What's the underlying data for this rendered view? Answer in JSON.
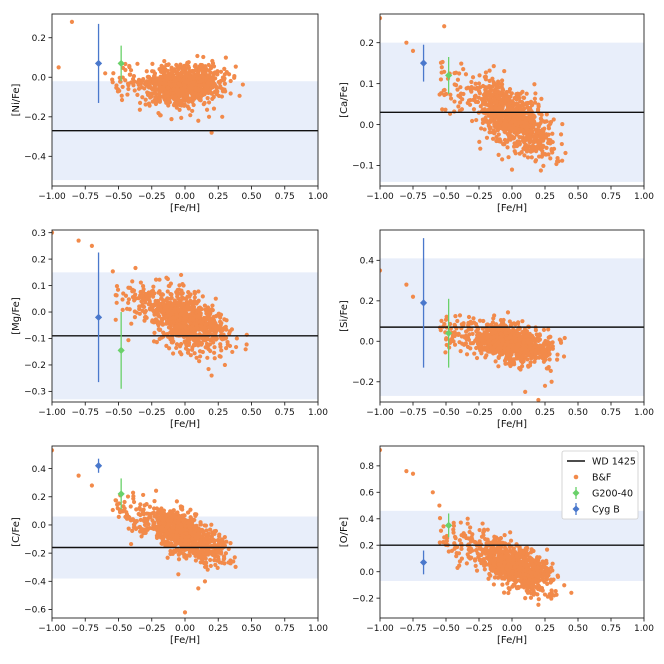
{
  "colors": {
    "band": "#e8eefa",
    "wd_line": "#111111",
    "bf": "#f28a4a",
    "g200": "#6ad16a",
    "cygb": "#4a78cc"
  },
  "legend": {
    "location": "upper right of bottom-right panel",
    "entries": [
      {
        "label": "WD 1425",
        "marker": "line"
      },
      {
        "label": "B&F",
        "marker": "dot"
      },
      {
        "label": "G200-40",
        "marker": "errorbar"
      },
      {
        "label": "Cyg B",
        "marker": "errorbar"
      }
    ]
  },
  "chart_data": [
    {
      "type": "scatter",
      "panel": "ni",
      "xlabel": "[Fe/H]",
      "ylabel": "[Ni/Fe]",
      "xlim": [
        -1.0,
        1.0
      ],
      "ylim": [
        -0.55,
        0.32
      ],
      "xticks": [
        -1.0,
        -0.75,
        -0.5,
        -0.25,
        0.0,
        0.25,
        0.5,
        0.75,
        1.0
      ],
      "xticklabels": [
        "−1.00",
        "−0.75",
        "−0.50",
        "−0.25",
        "0.00",
        "0.25",
        "0.50",
        "0.75",
        "1.00"
      ],
      "yticks": [
        -0.4,
        -0.2,
        0.0,
        0.2
      ],
      "yticklabels": [
        "−0.4",
        "−0.2",
        "0.0",
        "0.2"
      ],
      "band": [
        -0.52,
        -0.02
      ],
      "wd_value": -0.27,
      "g200": {
        "x": -0.48,
        "y": 0.07,
        "yerr": 0.09
      },
      "cygb": {
        "x": -0.65,
        "y": 0.07,
        "yerr": 0.2
      },
      "bf_trend": {
        "slope": 0.05,
        "intercept": -0.04,
        "curv": 0.18,
        "spread": 0.05
      },
      "bf_outliers": [
        [
          -0.85,
          0.28
        ],
        [
          -0.95,
          0.05
        ],
        [
          -0.6,
          0.02
        ],
        [
          0.2,
          -0.28
        ],
        [
          0.28,
          -0.2
        ],
        [
          0.1,
          -0.22
        ]
      ]
    },
    {
      "type": "scatter",
      "panel": "ca",
      "xlabel": "[Fe/H]",
      "ylabel": "[Ca/Fe]",
      "xlim": [
        -1.0,
        1.0
      ],
      "ylim": [
        -0.15,
        0.27
      ],
      "xticks": [
        -1.0,
        -0.75,
        -0.5,
        -0.25,
        0.0,
        0.25,
        0.5,
        0.75,
        1.0
      ],
      "xticklabels": [
        "−1.00",
        "−0.75",
        "−0.50",
        "−0.25",
        "0.00",
        "0.25",
        "0.50",
        "0.75",
        "1.00"
      ],
      "yticks": [
        -0.1,
        0.0,
        0.1,
        0.2
      ],
      "yticklabels": [
        "−0.1",
        "0.0",
        "0.1",
        "0.2"
      ],
      "band": [
        -0.14,
        0.2
      ],
      "wd_value": 0.03,
      "g200": {
        "x": -0.48,
        "y": 0.12,
        "yerr": 0.045
      },
      "cygb": {
        "x": -0.67,
        "y": 0.15,
        "yerr": 0.045
      },
      "bf_trend": {
        "slope": -0.18,
        "intercept": 0.015,
        "curv": 0.0,
        "spread": 0.035
      },
      "bf_outliers": [
        [
          -1.0,
          0.26
        ],
        [
          -0.8,
          0.2
        ],
        [
          -0.75,
          0.18
        ],
        [
          0.0,
          -0.11
        ],
        [
          0.15,
          -0.08
        ],
        [
          0.3,
          -0.06
        ]
      ]
    },
    {
      "type": "scatter",
      "panel": "mg",
      "xlabel": "[Fe/H]",
      "ylabel": "[Mg/Fe]",
      "xlim": [
        -1.0,
        1.0
      ],
      "ylim": [
        -0.34,
        0.31
      ],
      "xticks": [
        -1.0,
        -0.75,
        -0.5,
        -0.25,
        0.0,
        0.25,
        0.5,
        0.75,
        1.0
      ],
      "xticklabels": [
        "−1.00",
        "−0.75",
        "−0.50",
        "−0.25",
        "0.00",
        "0.25",
        "0.50",
        "0.75",
        "1.00"
      ],
      "yticks": [
        -0.3,
        -0.2,
        -0.1,
        0.0,
        0.1,
        0.2,
        0.3
      ],
      "yticklabels": [
        "−0.3",
        "−0.2",
        "−0.1",
        "0.0",
        "0.1",
        "0.2",
        "0.3"
      ],
      "band": [
        -0.33,
        0.15
      ],
      "wd_value": -0.09,
      "g200": {
        "x": -0.48,
        "y": -0.145,
        "yerr": 0.145
      },
      "cygb": {
        "x": -0.65,
        "y": -0.02,
        "yerr": 0.245
      },
      "bf_trend": {
        "slope": -0.2,
        "intercept": -0.03,
        "curv": 0.0,
        "spread": 0.05
      },
      "bf_outliers": [
        [
          -1.0,
          0.3
        ],
        [
          -0.8,
          0.27
        ],
        [
          -0.7,
          0.25
        ],
        [
          0.2,
          -0.24
        ],
        [
          0.3,
          -0.2
        ]
      ]
    },
    {
      "type": "scatter",
      "panel": "si",
      "xlabel": "[Fe/H]",
      "ylabel": "[Si/Fe]",
      "xlim": [
        -1.0,
        1.0
      ],
      "ylim": [
        -0.3,
        0.55
      ],
      "xticks": [
        -1.0,
        -0.75,
        -0.5,
        -0.25,
        0.0,
        0.25,
        0.5,
        0.75,
        1.0
      ],
      "xticklabels": [
        "−1.00",
        "−0.75",
        "−0.50",
        "−0.25",
        "0.00",
        "0.25",
        "0.50",
        "0.75",
        "1.00"
      ],
      "yticks": [
        -0.2,
        0.0,
        0.2,
        0.4
      ],
      "yticklabels": [
        "−0.2",
        "0.0",
        "0.2",
        "0.4"
      ],
      "band": [
        -0.27,
        0.41
      ],
      "wd_value": 0.07,
      "g200": {
        "x": -0.48,
        "y": 0.04,
        "yerr": 0.17
      },
      "cygb": {
        "x": -0.67,
        "y": 0.19,
        "yerr": 0.32
      },
      "bf_trend": {
        "slope": -0.13,
        "intercept": -0.01,
        "curv": 0.0,
        "spread": 0.045
      },
      "bf_outliers": [
        [
          -1.0,
          0.35
        ],
        [
          -0.8,
          0.28
        ],
        [
          -0.75,
          0.22
        ],
        [
          0.1,
          -0.25
        ],
        [
          0.2,
          -0.29
        ],
        [
          0.25,
          -0.22
        ],
        [
          0.3,
          -0.2
        ]
      ]
    },
    {
      "type": "scatter",
      "panel": "c",
      "xlabel": "[Fe/H]",
      "ylabel": "[C/Fe]",
      "xlim": [
        -1.0,
        1.0
      ],
      "ylim": [
        -0.66,
        0.56
      ],
      "xticks": [
        -1.0,
        -0.75,
        -0.5,
        -0.25,
        0.0,
        0.25,
        0.5,
        0.75,
        1.0
      ],
      "xticklabels": [
        "−1.00",
        "−0.75",
        "−0.50",
        "−0.25",
        "0.00",
        "0.25",
        "0.50",
        "0.75",
        "1.00"
      ],
      "yticks": [
        -0.6,
        -0.4,
        -0.2,
        0.0,
        0.2,
        0.4
      ],
      "yticklabels": [
        "−0.6",
        "−0.4",
        "−0.2",
        "0.0",
        "0.2",
        "0.4"
      ],
      "band": [
        -0.38,
        0.06
      ],
      "wd_value": -0.16,
      "g200": {
        "x": -0.48,
        "y": 0.22,
        "yerr": 0.11
      },
      "cygb": {
        "x": -0.65,
        "y": 0.42,
        "yerr": 0.05
      },
      "bf_trend": {
        "slope": -0.38,
        "intercept": -0.07,
        "curv": 0.0,
        "spread": 0.07
      },
      "bf_outliers": [
        [
          -1.0,
          0.53
        ],
        [
          -0.8,
          0.35
        ],
        [
          -0.7,
          0.28
        ],
        [
          0.0,
          -0.62
        ],
        [
          0.1,
          -0.45
        ],
        [
          0.15,
          -0.4
        ],
        [
          -0.05,
          -0.35
        ]
      ]
    },
    {
      "type": "scatter",
      "panel": "o",
      "xlabel": "[Fe/H]",
      "ylabel": "[O/Fe]",
      "xlim": [
        -1.0,
        1.0
      ],
      "ylim": [
        -0.35,
        0.95
      ],
      "xticks": [
        -1.0,
        -0.75,
        -0.5,
        -0.25,
        0.0,
        0.25,
        0.5,
        0.75,
        1.0
      ],
      "xticklabels": [
        "−1.00",
        "−0.75",
        "−0.50",
        "−0.25",
        "0.00",
        "0.25",
        "0.50",
        "0.75",
        "1.00"
      ],
      "yticks": [
        -0.2,
        0.0,
        0.2,
        0.4,
        0.6,
        0.8
      ],
      "yticklabels": [
        "−0.2",
        "0.0",
        "0.2",
        "0.4",
        "0.6",
        "0.8"
      ],
      "band": [
        -0.07,
        0.46
      ],
      "wd_value": 0.2,
      "g200": {
        "x": -0.48,
        "y": 0.35,
        "yerr": 0.09
      },
      "cygb": {
        "x": -0.67,
        "y": 0.07,
        "yerr": 0.09
      },
      "bf_trend": {
        "slope": -0.4,
        "intercept": 0.06,
        "curv": 0.0,
        "spread": 0.08
      },
      "bf_outliers": [
        [
          -1.0,
          0.92
        ],
        [
          -0.8,
          0.76
        ],
        [
          -0.75,
          0.74
        ],
        [
          -0.6,
          0.6
        ],
        [
          -0.55,
          0.5
        ],
        [
          0.1,
          -0.2
        ],
        [
          0.2,
          -0.25
        ]
      ]
    }
  ]
}
